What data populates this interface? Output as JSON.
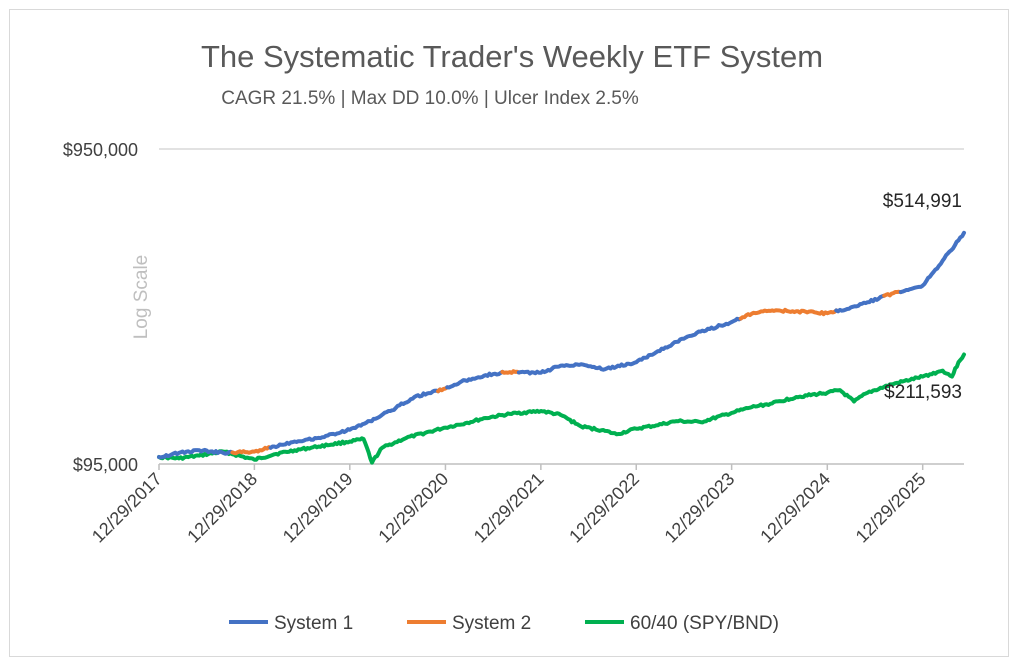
{
  "chart_data": {
    "type": "line",
    "title": "The Systematic Trader's Weekly ETF System",
    "subtitle": "CAGR 21.5% | Max DD 10.0% | Ulcer Index 2.5%",
    "ylabel": "Log Scale",
    "xlabel": "",
    "y_scale": "log",
    "ylim": [
      95000,
      950000
    ],
    "y_ticks": [
      "$950,000",
      "$95,000"
    ],
    "x_ticks": [
      "12/29/2017",
      "12/29/2018",
      "12/29/2019",
      "12/29/2020",
      "12/29/2021",
      "12/29/2022",
      "12/29/2023",
      "12/29/2024",
      "12/29/2025"
    ],
    "x_range": [
      "12/29/2017",
      "2026-06-05"
    ],
    "legend_position": "bottom",
    "grid": "horizontal",
    "colors": {
      "system1": "#4472c4",
      "system2": "#ed7d31",
      "benchmark": "#00b050"
    },
    "series": [
      {
        "name": "System 1 / System 2",
        "key": "system",
        "points": [
          [
            "2017-12-29",
            100000
          ],
          [
            "2018-03-15",
            103000
          ],
          [
            "2018-06-01",
            105000
          ],
          [
            "2018-09-01",
            103000
          ],
          [
            "2018-12-29",
            104000
          ],
          [
            "2019-03-15",
            108000
          ],
          [
            "2019-06-01",
            112000
          ],
          [
            "2019-09-01",
            115000
          ],
          [
            "2019-12-29",
            122000
          ],
          [
            "2020-03-15",
            130000
          ],
          [
            "2020-06-01",
            140000
          ],
          [
            "2020-09-01",
            155000
          ],
          [
            "2020-12-29",
            165000
          ],
          [
            "2021-03-15",
            175000
          ],
          [
            "2021-06-01",
            182000
          ],
          [
            "2021-09-01",
            186000
          ],
          [
            "2021-12-29",
            185000
          ],
          [
            "2022-03-15",
            195000
          ],
          [
            "2022-06-01",
            197000
          ],
          [
            "2022-09-01",
            190000
          ],
          [
            "2022-12-29",
            200000
          ],
          [
            "2023-03-15",
            215000
          ],
          [
            "2023-06-01",
            232000
          ],
          [
            "2023-09-01",
            250000
          ],
          [
            "2023-12-29",
            268000
          ],
          [
            "2024-03-15",
            285000
          ],
          [
            "2024-06-01",
            292000
          ],
          [
            "2024-09-01",
            290000
          ],
          [
            "2024-12-29",
            286000
          ],
          [
            "2025-03-15",
            295000
          ],
          [
            "2025-06-01",
            310000
          ],
          [
            "2025-09-01",
            330000
          ],
          [
            "2025-12-29",
            350000
          ],
          [
            "2026-03-15",
            420000
          ],
          [
            "2026-05-01",
            470000
          ],
          [
            "2026-06-05",
            514991
          ]
        ],
        "segments": [
          {
            "name": "System 1",
            "from": "2017-12-29",
            "to": "2018-10-01"
          },
          {
            "name": "System 2",
            "from": "2018-10-01",
            "to": "2019-03-01"
          },
          {
            "name": "System 1",
            "from": "2019-03-01",
            "to": "2020-12-01"
          },
          {
            "name": "System 2",
            "from": "2020-12-01",
            "to": "2021-01-01"
          },
          {
            "name": "System 1",
            "from": "2021-01-01",
            "to": "2021-08-01"
          },
          {
            "name": "System 2",
            "from": "2021-08-01",
            "to": "2021-10-01"
          },
          {
            "name": "System 1",
            "from": "2021-10-01",
            "to": "2024-02-01"
          },
          {
            "name": "System 2",
            "from": "2024-02-01",
            "to": "2025-02-01"
          },
          {
            "name": "System 1",
            "from": "2025-02-01",
            "to": "2025-08-01"
          },
          {
            "name": "System 2",
            "from": "2025-08-01",
            "to": "2025-10-01"
          },
          {
            "name": "System 1",
            "from": "2025-10-01",
            "to": "2026-06-05"
          }
        ]
      },
      {
        "name": "60/40 (SPY/BND)",
        "key": "benchmark",
        "points": [
          [
            "2017-12-29",
            100000
          ],
          [
            "2018-03-15",
            99000
          ],
          [
            "2018-06-01",
            101000
          ],
          [
            "2018-09-01",
            104000
          ],
          [
            "2018-12-29",
            98000
          ],
          [
            "2019-03-15",
            102000
          ],
          [
            "2019-06-01",
            105000
          ],
          [
            "2019-09-01",
            108000
          ],
          [
            "2019-12-29",
            112000
          ],
          [
            "2020-02-20",
            114000
          ],
          [
            "2020-03-23",
            96000
          ],
          [
            "2020-05-01",
            107000
          ],
          [
            "2020-08-01",
            115000
          ],
          [
            "2020-12-29",
            124000
          ],
          [
            "2021-03-15",
            128000
          ],
          [
            "2021-06-01",
            133000
          ],
          [
            "2021-09-01",
            137000
          ],
          [
            "2021-12-29",
            140000
          ],
          [
            "2022-03-15",
            136000
          ],
          [
            "2022-06-01",
            125000
          ],
          [
            "2022-09-01",
            121000
          ],
          [
            "2022-10-15",
            118000
          ],
          [
            "2022-12-29",
            123000
          ],
          [
            "2023-03-15",
            126000
          ],
          [
            "2023-06-01",
            130000
          ],
          [
            "2023-09-01",
            129000
          ],
          [
            "2023-12-29",
            138000
          ],
          [
            "2024-03-15",
            144000
          ],
          [
            "2024-06-01",
            148000
          ],
          [
            "2024-09-01",
            155000
          ],
          [
            "2024-12-29",
            160000
          ],
          [
            "2025-02-15",
            163000
          ],
          [
            "2025-04-10",
            150000
          ],
          [
            "2025-06-01",
            160000
          ],
          [
            "2025-09-01",
            170000
          ],
          [
            "2025-12-29",
            180000
          ],
          [
            "2026-03-15",
            188000
          ],
          [
            "2026-04-20",
            180000
          ],
          [
            "2026-05-15",
            200000
          ],
          [
            "2026-06-05",
            211593
          ]
        ]
      }
    ],
    "end_labels": [
      {
        "series": "system",
        "text": "$514,991"
      },
      {
        "series": "benchmark",
        "text": "$211,593"
      }
    ],
    "legend": [
      {
        "key": "system1",
        "label": "System 1"
      },
      {
        "key": "system2",
        "label": "System 2"
      },
      {
        "key": "benchmark",
        "label": "60/40 (SPY/BND)"
      }
    ]
  }
}
